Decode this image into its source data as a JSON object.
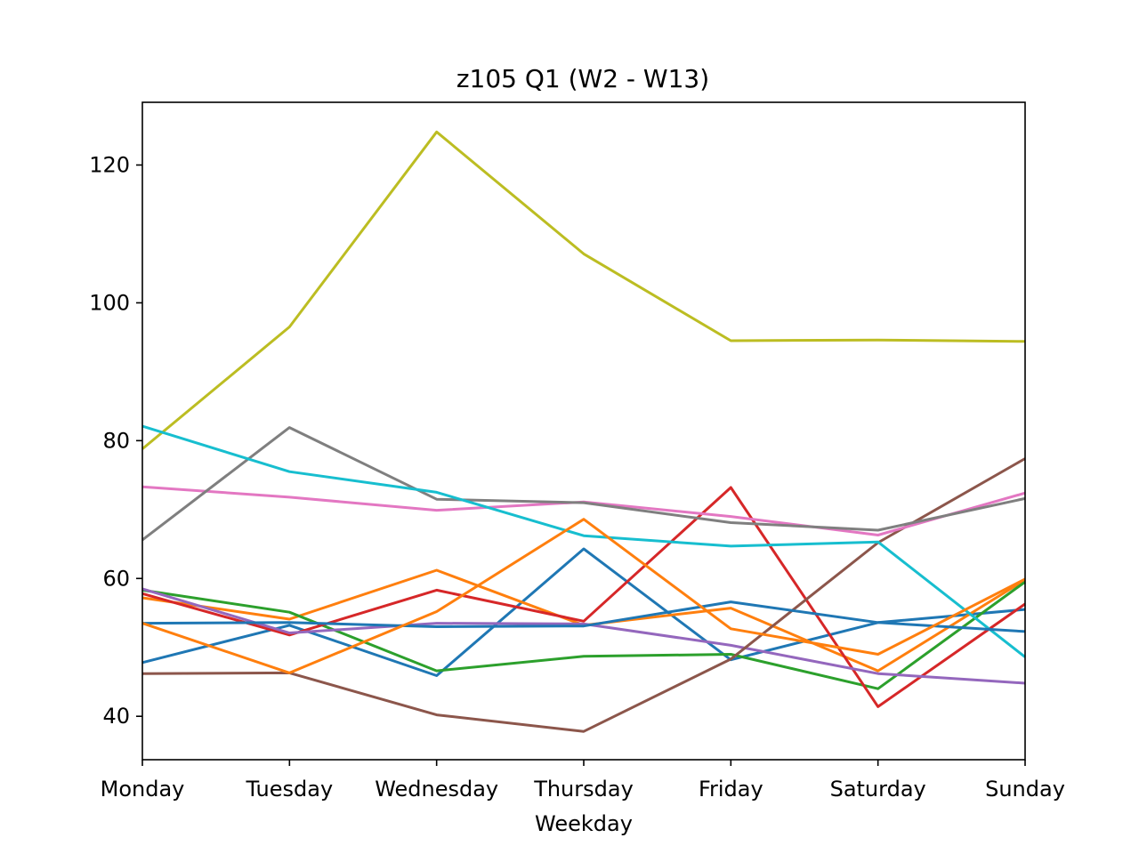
{
  "chart_data": {
    "type": "line",
    "title": "z105 Q1 (W2 - W13)",
    "xlabel": "Weekday",
    "ylabel": "",
    "categories": [
      "Monday",
      "Tuesday",
      "Wednesday",
      "Thursday",
      "Friday",
      "Saturday",
      "Sunday"
    ],
    "ylim": [
      33.7,
      129.1
    ],
    "yticks": [
      40,
      60,
      80,
      100,
      120
    ],
    "grid": false,
    "legend": "none",
    "series": [
      {
        "color": "#1f77b4",
        "values": [
          47.8,
          53.2,
          45.9,
          64.3,
          48.2,
          53.6,
          55.5
        ]
      },
      {
        "color": "#ff7f0e",
        "values": [
          57.2,
          54.1,
          61.2,
          53.2,
          55.7,
          46.6,
          59.8
        ]
      },
      {
        "color": "#2ca02c",
        "values": [
          58.3,
          55.1,
          46.6,
          48.7,
          49.0,
          44.0,
          59.5
        ]
      },
      {
        "color": "#d62728",
        "values": [
          57.8,
          51.8,
          58.3,
          53.8,
          73.2,
          41.4,
          56.3
        ]
      },
      {
        "color": "#9467bd",
        "values": [
          58.5,
          52.1,
          53.5,
          53.4,
          50.3,
          46.2,
          44.8
        ]
      },
      {
        "color": "#8c564b",
        "values": [
          46.2,
          46.3,
          40.2,
          37.8,
          48.3,
          65.2,
          77.4
        ]
      },
      {
        "color": "#e377c2",
        "values": [
          73.3,
          71.8,
          69.9,
          71.1,
          69.0,
          66.3,
          72.4
        ]
      },
      {
        "color": "#7f7f7f",
        "values": [
          65.6,
          81.9,
          71.5,
          71.0,
          68.1,
          67.0,
          71.6
        ]
      },
      {
        "color": "#bcbd22",
        "values": [
          78.8,
          96.5,
          124.8,
          107.1,
          94.5,
          94.6,
          94.4
        ]
      },
      {
        "color": "#17becf",
        "values": [
          82.1,
          75.5,
          72.5,
          66.2,
          64.7,
          65.3,
          48.6
        ]
      },
      {
        "color": "#1f77b4",
        "values": [
          53.5,
          53.6,
          53.0,
          53.1,
          56.6,
          53.6,
          52.3
        ]
      },
      {
        "color": "#ff7f0e",
        "values": [
          53.5,
          46.3,
          55.2,
          68.6,
          52.7,
          49.0,
          59.9
        ]
      }
    ]
  }
}
